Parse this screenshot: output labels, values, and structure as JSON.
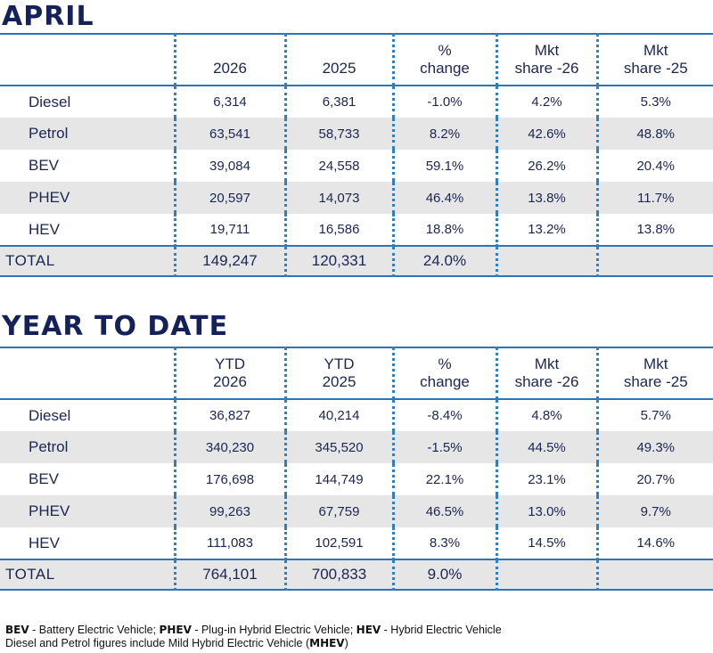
{
  "april": {
    "title": "APRIL",
    "headers": {
      "c1": [
        "",
        "2026"
      ],
      "c2": [
        "",
        "2025"
      ],
      "c3": [
        "%",
        "change"
      ],
      "c4": [
        "Mkt",
        "share -26"
      ],
      "c5": [
        "Mkt",
        "share -25"
      ]
    },
    "rows": [
      {
        "fuel": "Diesel",
        "v1": "6,314",
        "v2": "6,381",
        "change": "-1.0%",
        "share26": "4.2%",
        "share25": "5.3%"
      },
      {
        "fuel": "Petrol",
        "v1": "63,541",
        "v2": "58,733",
        "change": "8.2%",
        "share26": "42.6%",
        "share25": "48.8%"
      },
      {
        "fuel": "BEV",
        "v1": "39,084",
        "v2": "24,558",
        "change": "59.1%",
        "share26": "26.2%",
        "share25": "20.4%"
      },
      {
        "fuel": "PHEV",
        "v1": "20,597",
        "v2": "14,073",
        "change": "46.4%",
        "share26": "13.8%",
        "share25": "11.7%"
      },
      {
        "fuel": "HEV",
        "v1": "19,711",
        "v2": "16,586",
        "change": "18.8%",
        "share26": "13.2%",
        "share25": "13.8%"
      }
    ],
    "total": {
      "label": "TOTAL",
      "v1": "149,247",
      "v2": "120,331",
      "change": "24.0%"
    }
  },
  "ytd": {
    "title": "YEAR TO DATE",
    "headers": {
      "c1": [
        "YTD",
        "2026"
      ],
      "c2": [
        "YTD",
        "2025"
      ],
      "c3": [
        "%",
        "change"
      ],
      "c4": [
        "Mkt",
        "share -26"
      ],
      "c5": [
        "Mkt",
        "share -25"
      ]
    },
    "rows": [
      {
        "fuel": "Diesel",
        "v1": "36,827",
        "v2": "40,214",
        "change": "-8.4%",
        "share26": "4.8%",
        "share25": "5.7%"
      },
      {
        "fuel": "Petrol",
        "v1": "340,230",
        "v2": "345,520",
        "change": "-1.5%",
        "share26": "44.5%",
        "share25": "49.3%"
      },
      {
        "fuel": "BEV",
        "v1": "176,698",
        "v2": "144,749",
        "change": "22.1%",
        "share26": "23.1%",
        "share25": "20.7%"
      },
      {
        "fuel": "PHEV",
        "v1": "99,263",
        "v2": "67,759",
        "change": "46.5%",
        "share26": "13.0%",
        "share25": "9.7%"
      },
      {
        "fuel": "HEV",
        "v1": "111,083",
        "v2": "102,591",
        "change": "8.3%",
        "share26": "14.5%",
        "share25": "14.6%"
      }
    ],
    "total": {
      "label": "TOTAL",
      "v1": "764,101",
      "v2": "700,833",
      "change": "9.0%"
    }
  },
  "footnote": {
    "line1": [
      {
        "abbr": "BEV",
        "text": " - Battery Electric Vehicle; "
      },
      {
        "abbr": "PHEV",
        "text": " - Plug-in Hybrid Electric Vehicle; "
      },
      {
        "abbr": "HEV",
        "text": " - Hybrid Electric Vehicle"
      }
    ],
    "line2_text": "Diesel and Petrol figures include Mild Hybrid Electric Vehicle (",
    "line2_abbr": "MHEV",
    "line2_end": ")"
  },
  "colors": {
    "title": "#15215a",
    "text": "#1b2553",
    "rule": "#2f72b5",
    "dotted_divider": "#2e7fc4",
    "shaded_row": "#e6e6e6"
  }
}
